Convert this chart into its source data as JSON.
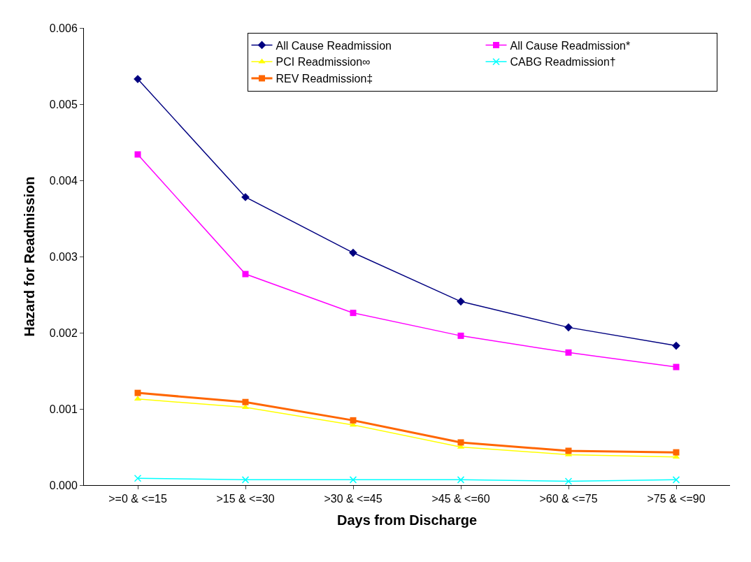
{
  "chart_data": {
    "type": "line",
    "xlabel": "Days from Discharge",
    "ylabel": "Hazard for Readmission",
    "categories": [
      ">=0 & <=15",
      ">15 & <=30",
      ">30 & <=45",
      ">45 & <=60",
      ">60 & <=75",
      ">75 & <=90"
    ],
    "series": [
      {
        "name": "All Cause Readmission",
        "color": "#000080",
        "marker": "diamond",
        "values": [
          0.00533,
          0.00378,
          0.00305,
          0.00241,
          0.00207,
          0.00183
        ]
      },
      {
        "name": "All Cause Readmission*",
        "color": "#ff00ff",
        "marker": "square",
        "values": [
          0.00434,
          0.00277,
          0.00226,
          0.00196,
          0.00174,
          0.00155
        ]
      },
      {
        "name": "PCI Readmission∞",
        "color": "#ffff00",
        "marker": "triangle",
        "values": [
          0.00113,
          0.00102,
          0.00079,
          0.0005,
          0.0004,
          0.00037
        ]
      },
      {
        "name": "CABG Readmission†",
        "color": "#00ffff",
        "marker": "cross",
        "values": [
          9e-05,
          7e-05,
          7e-05,
          7e-05,
          5e-05,
          7e-05
        ]
      },
      {
        "name": "REV Readmission‡",
        "color": "#ff6600",
        "marker": "square",
        "values": [
          0.00121,
          0.00109,
          0.00085,
          0.00056,
          0.00045,
          0.00043
        ]
      }
    ],
    "ylim": [
      0,
      0.006
    ],
    "yticks": [
      {
        "value": 0,
        "label": "0.000"
      },
      {
        "value": 0.001,
        "label": "0.001"
      },
      {
        "value": 0.002,
        "label": "0.002"
      },
      {
        "value": 0.003,
        "label": "0.003"
      },
      {
        "value": 0.004,
        "label": "0.004"
      },
      {
        "value": 0.005,
        "label": "0.005"
      },
      {
        "value": 0.006,
        "label": "0.006"
      }
    ],
    "legend": "top right",
    "line_style": "solid"
  }
}
